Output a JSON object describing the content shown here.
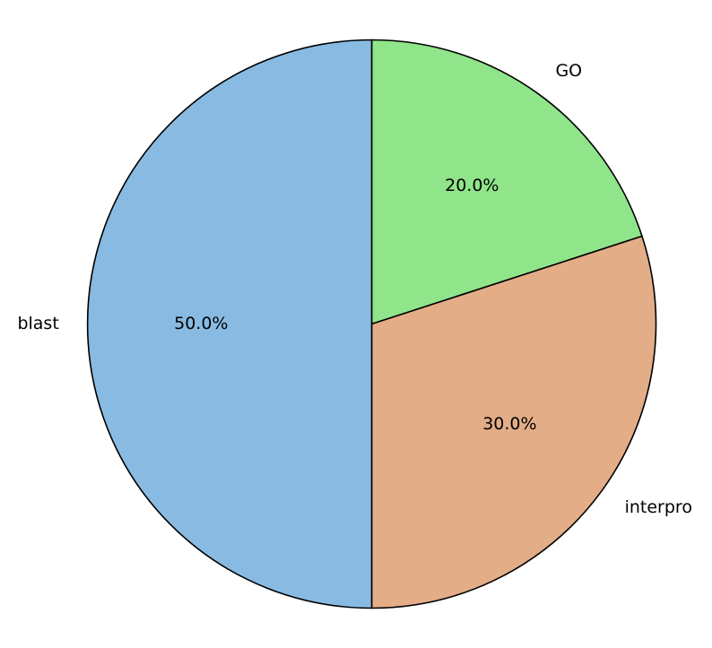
{
  "chart_data": {
    "type": "pie",
    "title": "",
    "start_angle_deg": 90,
    "direction": "clockwise",
    "legend": "none",
    "slices": [
      {
        "label": "GO",
        "value": 20.0,
        "pct_label": "20.0%",
        "color": "#90e48a"
      },
      {
        "label": "interpro",
        "value": 30.0,
        "pct_label": "30.0%",
        "color": "#e3ad88"
      },
      {
        "label": "blast",
        "value": 50.0,
        "pct_label": "50.0%",
        "color": "#89bbe2"
      }
    ]
  }
}
